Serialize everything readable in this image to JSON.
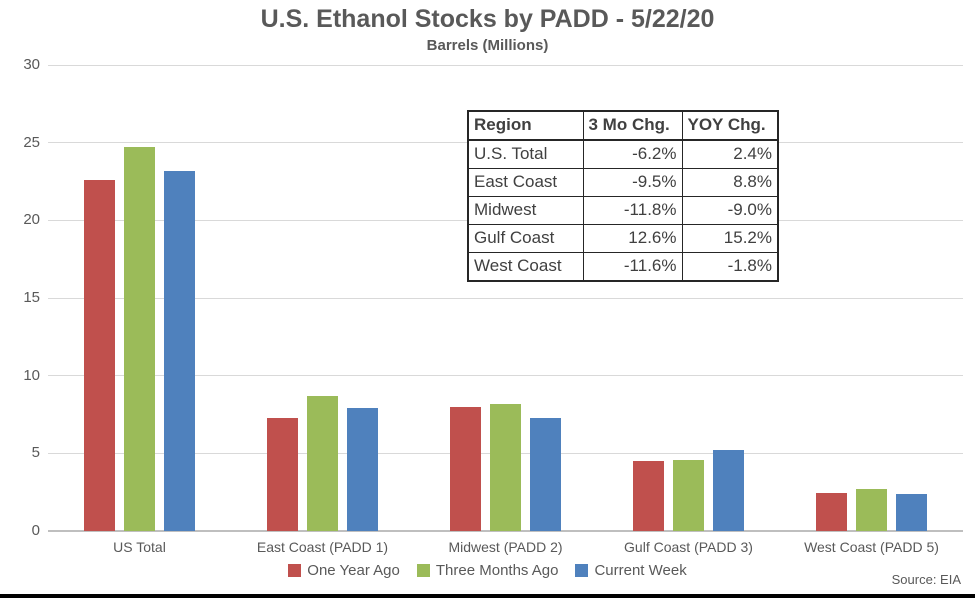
{
  "title": "U.S. Ethanol Stocks by PADD - 5/22/20",
  "subtitle": "Barrels (Millions)",
  "source": "Source: EIA",
  "colors": {
    "one_year_ago": "#C0504D",
    "three_months_ago": "#9BBB59",
    "current_week": "#4F81BD",
    "gridline": "#d9d9d9",
    "axis_text": "#595959",
    "table_border": "#262626"
  },
  "chart_data": {
    "type": "bar",
    "title": "U.S. Ethanol Stocks by PADD - 5/22/20",
    "subtitle": "Barrels (Millions)",
    "ylabel": "Barrels (Millions)",
    "xlabel": "",
    "ylim": [
      0,
      30
    ],
    "yticks": [
      0,
      5,
      10,
      15,
      20,
      25,
      30
    ],
    "grid": true,
    "legend_position": "bottom",
    "categories": [
      "US Total",
      "East Coast (PADD 1)",
      "Midwest (PADD 2)",
      "Gulf Coast (PADD 3)",
      "West Coast (PADD 5)"
    ],
    "series": [
      {
        "name": "One Year Ago",
        "color": "#C0504D",
        "values": [
          22.6,
          7.3,
          8.0,
          4.5,
          2.45
        ]
      },
      {
        "name": "Three Months Ago",
        "color": "#9BBB59",
        "values": [
          24.7,
          8.7,
          8.2,
          4.6,
          2.7
        ]
      },
      {
        "name": "Current Week",
        "color": "#4F81BD",
        "values": [
          23.2,
          7.9,
          7.25,
          5.2,
          2.4
        ]
      }
    ]
  },
  "table": {
    "headers": [
      "Region",
      "3 Mo Chg.",
      "YOY Chg."
    ],
    "rows": [
      {
        "region": "U.S. Total",
        "mo3": "-6.2%",
        "yoy": "2.4%"
      },
      {
        "region": "East Coast",
        "mo3": "-9.5%",
        "yoy": "8.8%"
      },
      {
        "region": "Midwest",
        "mo3": "-11.8%",
        "yoy": "-9.0%"
      },
      {
        "region": "Gulf Coast",
        "mo3": "12.6%",
        "yoy": "15.2%"
      },
      {
        "region": "West Coast",
        "mo3": "-11.6%",
        "yoy": "-1.8%"
      }
    ]
  }
}
